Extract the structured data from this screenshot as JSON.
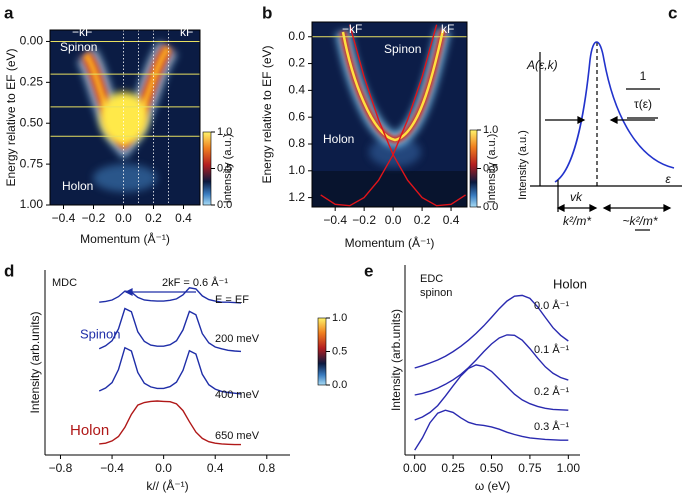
{
  "chart_data": [
    {
      "type": "heatmap",
      "panel": "a",
      "xlabel": "Momentum (Å⁻¹)",
      "ylabel": "Energy relative to EF (eV)",
      "xlim": [
        -0.49,
        0.51
      ],
      "ylim": [
        -0.07,
        1.0
      ],
      "y_inverted": true,
      "xticks": [
        {
          "value": -0.4,
          "label": "−0.4"
        },
        {
          "value": -0.2,
          "label": "−0.2"
        },
        {
          "value": 0,
          "label": "0.0"
        },
        {
          "value": 0.2,
          "label": "0.2"
        },
        {
          "value": 0.4,
          "label": "0.4"
        }
      ],
      "yticks": [
        {
          "value": 0,
          "label": "0.00"
        },
        {
          "value": 0.25,
          "label": "0.25"
        },
        {
          "value": 0.5,
          "label": "0.50"
        },
        {
          "value": 0.75,
          "label": "0.75"
        },
        {
          "value": 1,
          "label": "1.00"
        }
      ],
      "annotations": [
        "−kF",
        "kF",
        "Spinon",
        "Holon"
      ],
      "cut_energies": [
        0,
        0.2,
        0.4,
        0.58
      ],
      "cut_energy_color": "#e8e060",
      "cut_momenta": [
        0,
        0.1,
        0.2,
        0.3
      ],
      "colorbar": {
        "label": "Intensity (a.u.)",
        "lim": [
          0,
          1
        ],
        "ticks": [
          {
            "value": 0,
            "label": "0.0"
          },
          {
            "value": 0.5,
            "label": "0.5"
          },
          {
            "value": 1,
            "label": "1.0"
          }
        ]
      }
    },
    {
      "type": "heatmap",
      "panel": "b",
      "xlabel": "Momentum (Å⁻¹)",
      "ylabel": "Energy relative to EF (eV)",
      "xlim": [
        -0.56,
        0.51
      ],
      "ylim": [
        -0.11,
        1.27
      ],
      "y_inverted": true,
      "xticks": [
        {
          "value": -0.4,
          "label": "−0.4"
        },
        {
          "value": -0.2,
          "label": "−0.2"
        },
        {
          "value": 0,
          "label": "0.0"
        },
        {
          "value": 0.2,
          "label": "0.2"
        },
        {
          "value": 0.4,
          "label": "0.4"
        }
      ],
      "yticks": [
        {
          "value": 0,
          "label": "0.0"
        },
        0.2,
        0.4,
        0.6,
        0.8,
        {
          "value": 1,
          "label": "1.0"
        },
        1.2
      ],
      "annotations": [
        "−kF",
        "kF",
        "Spinon",
        "Holon"
      ],
      "cut_energies": [
        0
      ],
      "cut_energy_color": "#e8e060",
      "x": [
        -0.5,
        -0.4,
        -0.3,
        -0.2,
        -0.1,
        0,
        0.1,
        0.2,
        0.3,
        0.4,
        0.5
      ],
      "series": [
        {
          "color": "#e0141a",
          "values": [
            null,
            null,
            -0.09,
            0.3,
            0.62,
            0.88,
            1.07,
            1.2,
            1.26,
            1.25,
            1.18
          ]
        },
        {
          "color": "#e0141a",
          "values": [
            1.18,
            1.25,
            1.26,
            1.2,
            1.07,
            0.88,
            0.62,
            0.3,
            -0.09,
            null,
            null
          ]
        }
      ],
      "colorbar": {
        "label": "Intensity (a.u.)",
        "lim": [
          0,
          1
        ],
        "ticks": [
          {
            "value": 0,
            "label": "0.0"
          },
          {
            "value": 0.5,
            "label": "0.5"
          },
          {
            "value": 1,
            "label": "1.0"
          }
        ]
      }
    },
    {
      "type": "schematic",
      "panel": "c",
      "ylabel": "A(ε,k)",
      "intensity_label": "Intensity (a.u.)",
      "rate_numerator": "1",
      "rate_denominator": "τ(ε)",
      "xlabel": "ε",
      "width_label": "vk",
      "left_label": "k²/m*",
      "right_label": "~k²/m*"
    },
    {
      "type": "line",
      "panel": "d",
      "xlabel": "k// (Å⁻¹)",
      "ylabel": "Intensity (arb.units)",
      "xlim": [
        -0.92,
        0.98
      ],
      "ylim": [
        0,
        5
      ],
      "xticks": [
        {
          "value": -0.8,
          "label": "−0.8"
        },
        {
          "value": -0.4,
          "label": "−0.4"
        },
        {
          "value": 0,
          "label": "0.0"
        },
        0.4,
        0.8
      ],
      "annotations": [
        "MDC",
        "2kF = 0.6 Å⁻¹",
        "Spinon",
        "Holon"
      ],
      "x": [
        -0.5,
        -0.45,
        -0.4,
        -0.35,
        -0.3,
        -0.25,
        -0.2,
        -0.15,
        -0.1,
        -0.05,
        0,
        0.05,
        0.1,
        0.15,
        0.2,
        0.25,
        0.3,
        0.35,
        0.4,
        0.45,
        0.5,
        0.55,
        0.6
      ],
      "series": [
        {
          "name": "E = EF",
          "color": "#1f2ea8",
          "values": [
            4.13,
            4.15,
            4.19,
            4.28,
            4.43,
            4.4,
            4.26,
            4.19,
            4.17,
            4.16,
            4.16,
            4.18,
            4.22,
            4.33,
            4.52,
            4.49,
            4.3,
            4.2,
            4.16,
            4.13,
            4.13,
            4.12,
            4.11
          ]
        },
        {
          "name": "200 meV",
          "color": "#1f2ea8",
          "values": [
            2.87,
            2.95,
            3.09,
            3.41,
            3.96,
            3.87,
            3.33,
            3.07,
            2.97,
            2.94,
            2.94,
            2.98,
            3.09,
            3.38,
            3.88,
            3.79,
            3.28,
            3.03,
            2.92,
            2.87,
            2.83,
            2.81,
            2.8
          ]
        },
        {
          "name": "400 meV",
          "color": "#1f2ea8",
          "values": [
            1.73,
            1.81,
            1.96,
            2.31,
            2.9,
            2.81,
            2.23,
            1.94,
            1.84,
            1.8,
            1.8,
            1.85,
            1.97,
            2.29,
            2.82,
            2.73,
            2.18,
            1.9,
            1.78,
            1.72,
            1.69,
            1.67,
            1.65
          ]
        },
        {
          "name": "650 meV",
          "color": "#b01818",
          "values": [
            0.3,
            0.32,
            0.38,
            0.5,
            0.75,
            1.1,
            1.35,
            1.42,
            1.45,
            1.46,
            1.45,
            1.44,
            1.38,
            1.2,
            0.9,
            0.62,
            0.45,
            0.36,
            0.32,
            0.3,
            0.29,
            0.28,
            0.28
          ]
        }
      ],
      "colorbar": {
        "lim": [
          0,
          1
        ],
        "ticks": [
          {
            "value": 0,
            "label": "0.0"
          },
          {
            "value": 0.5,
            "label": "0.5"
          },
          {
            "value": 1,
            "label": "1.0"
          }
        ]
      }
    },
    {
      "type": "line",
      "panel": "e",
      "xlabel": "ω (eV)",
      "ylabel": "Intensity (arb.units)",
      "xlim": [
        -0.063,
        1.076
      ],
      "ylim": [
        0,
        5
      ],
      "xticks": [
        {
          "value": 0,
          "label": "0.00"
        },
        0.25,
        {
          "value": 0.5,
          "label": "0.50"
        },
        0.75,
        {
          "value": 1,
          "label": "1.00"
        }
      ],
      "annotations": [
        "EDC",
        "spinon",
        "Holon"
      ],
      "x": [
        0,
        0.05,
        0.1,
        0.15,
        0.2,
        0.25,
        0.3,
        0.35,
        0.4,
        0.45,
        0.5,
        0.55,
        0.6,
        0.65,
        0.7,
        0.75,
        0.8,
        0.85,
        0.9,
        0.95,
        1
      ],
      "series": [
        {
          "name": "0.0 Å⁻¹",
          "color": "#2a2ab0",
          "values": [
            2.29,
            2.35,
            2.42,
            2.5,
            2.6,
            2.72,
            2.86,
            3.02,
            3.2,
            3.4,
            3.62,
            3.85,
            4.05,
            4.18,
            4.2,
            4.12,
            3.9,
            3.62,
            3.35,
            3.15,
            3.0
          ]
        },
        {
          "name": "0.1 Å⁻¹",
          "color": "#2a2ab0",
          "values": [
            1.58,
            1.62,
            1.68,
            1.76,
            1.86,
            1.98,
            2.12,
            2.3,
            2.5,
            2.72,
            2.92,
            3.08,
            3.16,
            3.15,
            3.02,
            2.8,
            2.55,
            2.32,
            2.15,
            2.04,
            1.97
          ]
        },
        {
          "name": "0.2 Å⁻¹",
          "color": "#2a2ab0",
          "values": [
            0.92,
            1.0,
            1.12,
            1.3,
            1.55,
            1.82,
            2.08,
            2.28,
            2.37,
            2.33,
            2.2,
            2.0,
            1.8,
            1.6,
            1.45,
            1.35,
            1.28,
            1.23,
            1.2,
            1.19,
            1.18
          ]
        },
        {
          "name": "0.3 Å⁻¹",
          "color": "#2a2ab0",
          "values": [
            0.13,
            0.45,
            0.85,
            1.1,
            1.18,
            1.12,
            0.98,
            0.86,
            0.8,
            0.78,
            0.74,
            0.68,
            0.6,
            0.54,
            0.49,
            0.45,
            0.43,
            0.41,
            0.4,
            0.39,
            0.39
          ]
        }
      ]
    }
  ]
}
